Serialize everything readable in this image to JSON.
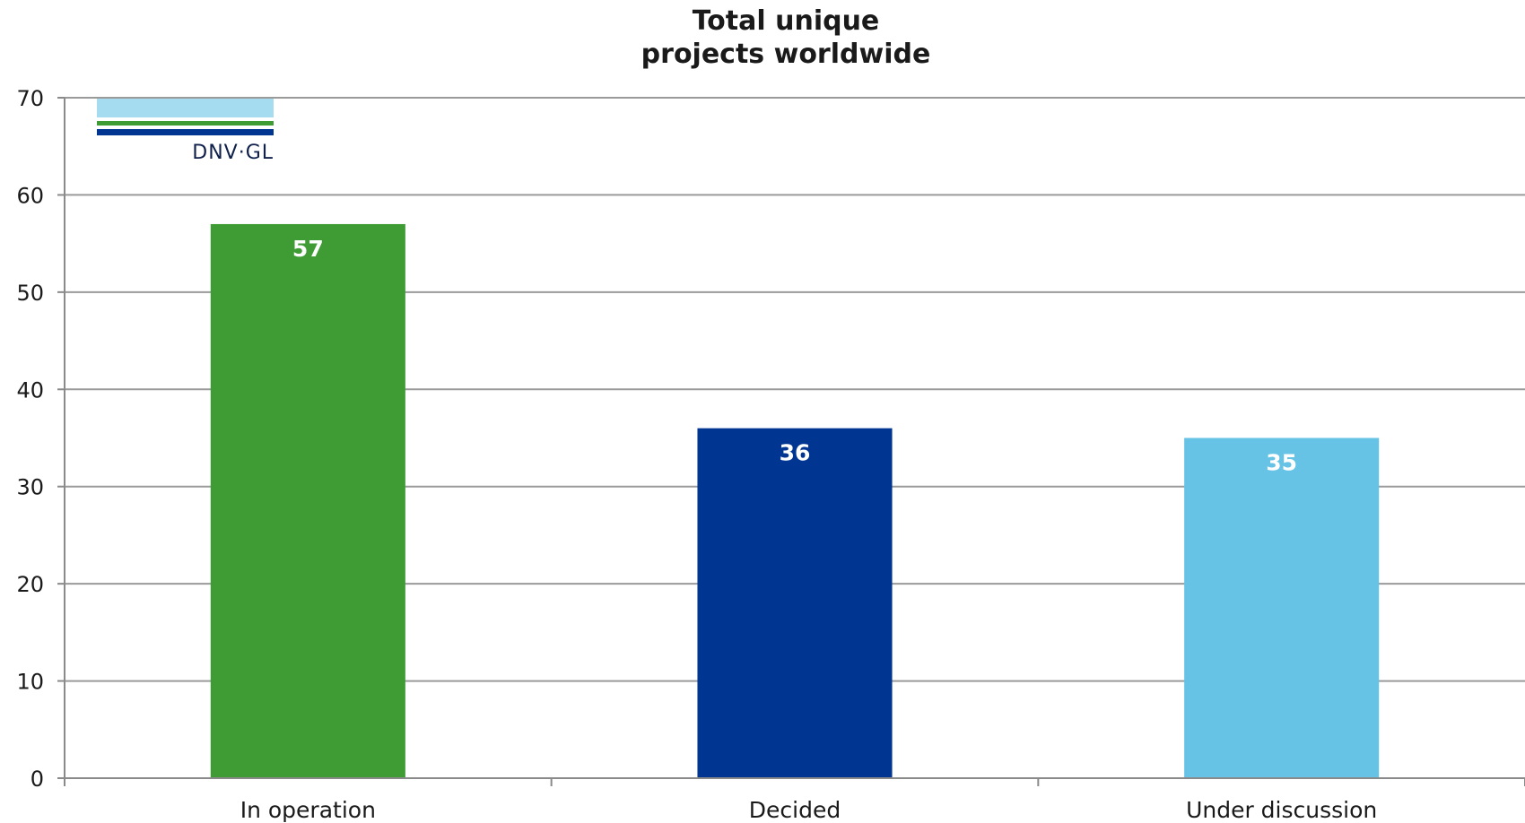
{
  "chart_data": {
    "type": "bar",
    "title": [
      "Total unique",
      "projects worldwide"
    ],
    "categories": [
      "In operation",
      "Decided",
      "Under discussion"
    ],
    "values": [
      57,
      36,
      35
    ],
    "colors": [
      "#3f9c35",
      "#003591",
      "#67c3e6"
    ],
    "ylim": [
      0,
      70
    ],
    "yticks": [
      0,
      10,
      20,
      30,
      40,
      50,
      60,
      70
    ],
    "grid": true,
    "legend": "none",
    "data_labels": true
  },
  "logo": {
    "text": "DNV·GL",
    "colors": [
      "#a6dcf0",
      "#3f9c35",
      "#003591"
    ]
  }
}
